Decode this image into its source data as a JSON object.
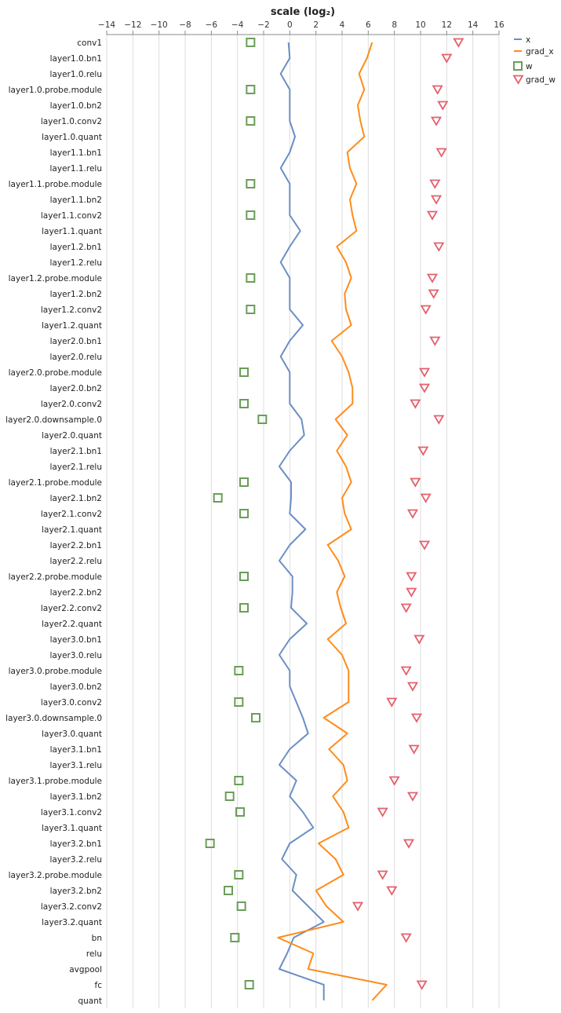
{
  "chart_data": {
    "type": "line",
    "xlabel": "scale (log₂)",
    "xlim": [
      -14,
      16
    ],
    "xticks": [
      -14,
      -12,
      -10,
      -8,
      -6,
      -4,
      -2,
      0,
      2,
      4,
      6,
      8,
      10,
      12,
      14,
      16
    ],
    "xtick_labels": [
      "−14",
      "−12",
      "−10",
      "−8",
      "−6",
      "−4",
      "−2",
      "0",
      "2",
      "4",
      "6",
      "8",
      "10",
      "12",
      "14",
      "16"
    ],
    "grid": true,
    "legend_position": "top-right",
    "categories": [
      "conv1",
      "layer1.0.bn1",
      "layer1.0.relu",
      "layer1.0.probe.module",
      "layer1.0.bn2",
      "layer1.0.conv2",
      "layer1.0.quant",
      "layer1.1.bn1",
      "layer1.1.relu",
      "layer1.1.probe.module",
      "layer1.1.bn2",
      "layer1.1.conv2",
      "layer1.1.quant",
      "layer1.2.bn1",
      "layer1.2.relu",
      "layer1.2.probe.module",
      "layer1.2.bn2",
      "layer1.2.conv2",
      "layer1.2.quant",
      "layer2.0.bn1",
      "layer2.0.relu",
      "layer2.0.probe.module",
      "layer2.0.bn2",
      "layer2.0.conv2",
      "layer2.0.downsample.0",
      "layer2.0.quant",
      "layer2.1.bn1",
      "layer2.1.relu",
      "layer2.1.probe.module",
      "layer2.1.bn2",
      "layer2.1.conv2",
      "layer2.1.quant",
      "layer2.2.bn1",
      "layer2.2.relu",
      "layer2.2.probe.module",
      "layer2.2.bn2",
      "layer2.2.conv2",
      "layer2.2.quant",
      "layer3.0.bn1",
      "layer3.0.relu",
      "layer3.0.probe.module",
      "layer3.0.bn2",
      "layer3.0.conv2",
      "layer3.0.downsample.0",
      "layer3.0.quant",
      "layer3.1.bn1",
      "layer3.1.relu",
      "layer3.1.probe.module",
      "layer3.1.bn2",
      "layer3.1.conv2",
      "layer3.1.quant",
      "layer3.2.bn1",
      "layer3.2.relu",
      "layer3.2.probe.module",
      "layer3.2.bn2",
      "layer3.2.conv2",
      "layer3.2.quant",
      "bn",
      "relu",
      "avgpool",
      "fc",
      "quant"
    ],
    "series": [
      {
        "name": "x",
        "mark": "line",
        "color": "#6b8fc4",
        "values": [
          -0.1,
          0,
          -0.7,
          0,
          0,
          0,
          0.4,
          0,
          -0.7,
          0,
          0,
          0,
          0.8,
          0,
          -0.7,
          0,
          0,
          0,
          1,
          0,
          -0.7,
          0,
          0,
          0,
          0.9,
          1.1,
          0,
          -0.8,
          0.1,
          0.1,
          0,
          1.2,
          0,
          -0.8,
          0.2,
          0.2,
          0.1,
          1.3,
          0,
          -0.8,
          0,
          0,
          0.5,
          1,
          1.4,
          0,
          -0.8,
          0.5,
          0,
          1,
          1.8,
          0,
          -0.6,
          0.5,
          0.2,
          1.4,
          2.6,
          0.3,
          -0.2,
          -0.8,
          2.6,
          2.6
        ]
      },
      {
        "name": "grad_x",
        "mark": "line",
        "color": "#ff8c1a",
        "values": [
          6.3,
          5.9,
          5.3,
          5.7,
          5.2,
          5.4,
          5.7,
          4.4,
          4.6,
          5.1,
          4.6,
          4.8,
          5.1,
          3.6,
          4.3,
          4.7,
          4.2,
          4.3,
          4.7,
          3.2,
          4,
          4.5,
          4.8,
          4.8,
          3.5,
          4.4,
          3.6,
          4.3,
          4.7,
          4,
          4.2,
          4.7,
          2.9,
          3.7,
          4.2,
          3.6,
          3.9,
          4.3,
          2.9,
          4,
          4.5,
          4.5,
          4.5,
          2.6,
          4.4,
          3,
          4.1,
          4.4,
          3.3,
          4.1,
          4.5,
          2.2,
          3.5,
          4.1,
          2,
          2.8,
          4.1,
          -0.9,
          1.8,
          1.4,
          7.4,
          6.3
        ]
      },
      {
        "name": "w",
        "mark": "square",
        "color": "#6a9e58",
        "values": [
          -3,
          null,
          null,
          -3,
          null,
          -3,
          null,
          null,
          null,
          -3,
          null,
          -3,
          null,
          null,
          null,
          -3,
          null,
          -3,
          null,
          null,
          null,
          -3.5,
          null,
          -3.5,
          -2.1,
          null,
          null,
          null,
          -3.5,
          -5.5,
          -3.5,
          null,
          null,
          null,
          -3.5,
          null,
          -3.5,
          null,
          null,
          null,
          -3.9,
          null,
          -3.9,
          -2.6,
          null,
          null,
          null,
          -3.9,
          -4.6,
          -3.8,
          null,
          -6.1,
          null,
          -3.9,
          -4.7,
          -3.7,
          null,
          -4.2,
          null,
          null,
          -3.1,
          null
        ]
      },
      {
        "name": "grad_w",
        "mark": "triangle-down",
        "color": "#e4606c",
        "values": [
          12.9,
          12,
          null,
          11.3,
          11.7,
          11.2,
          null,
          11.6,
          null,
          11.1,
          11.2,
          10.9,
          null,
          11.4,
          null,
          10.9,
          11,
          10.4,
          null,
          11.1,
          null,
          10.3,
          10.3,
          9.6,
          11.4,
          null,
          10.2,
          null,
          9.6,
          10.4,
          9.4,
          null,
          10.3,
          null,
          9.3,
          9.3,
          8.9,
          null,
          9.9,
          null,
          8.9,
          9.4,
          7.8,
          9.7,
          null,
          9.5,
          null,
          8,
          9.4,
          7.1,
          null,
          9.1,
          null,
          7.1,
          7.8,
          5.2,
          null,
          8.9,
          null,
          null,
          10.1,
          null
        ]
      }
    ]
  }
}
